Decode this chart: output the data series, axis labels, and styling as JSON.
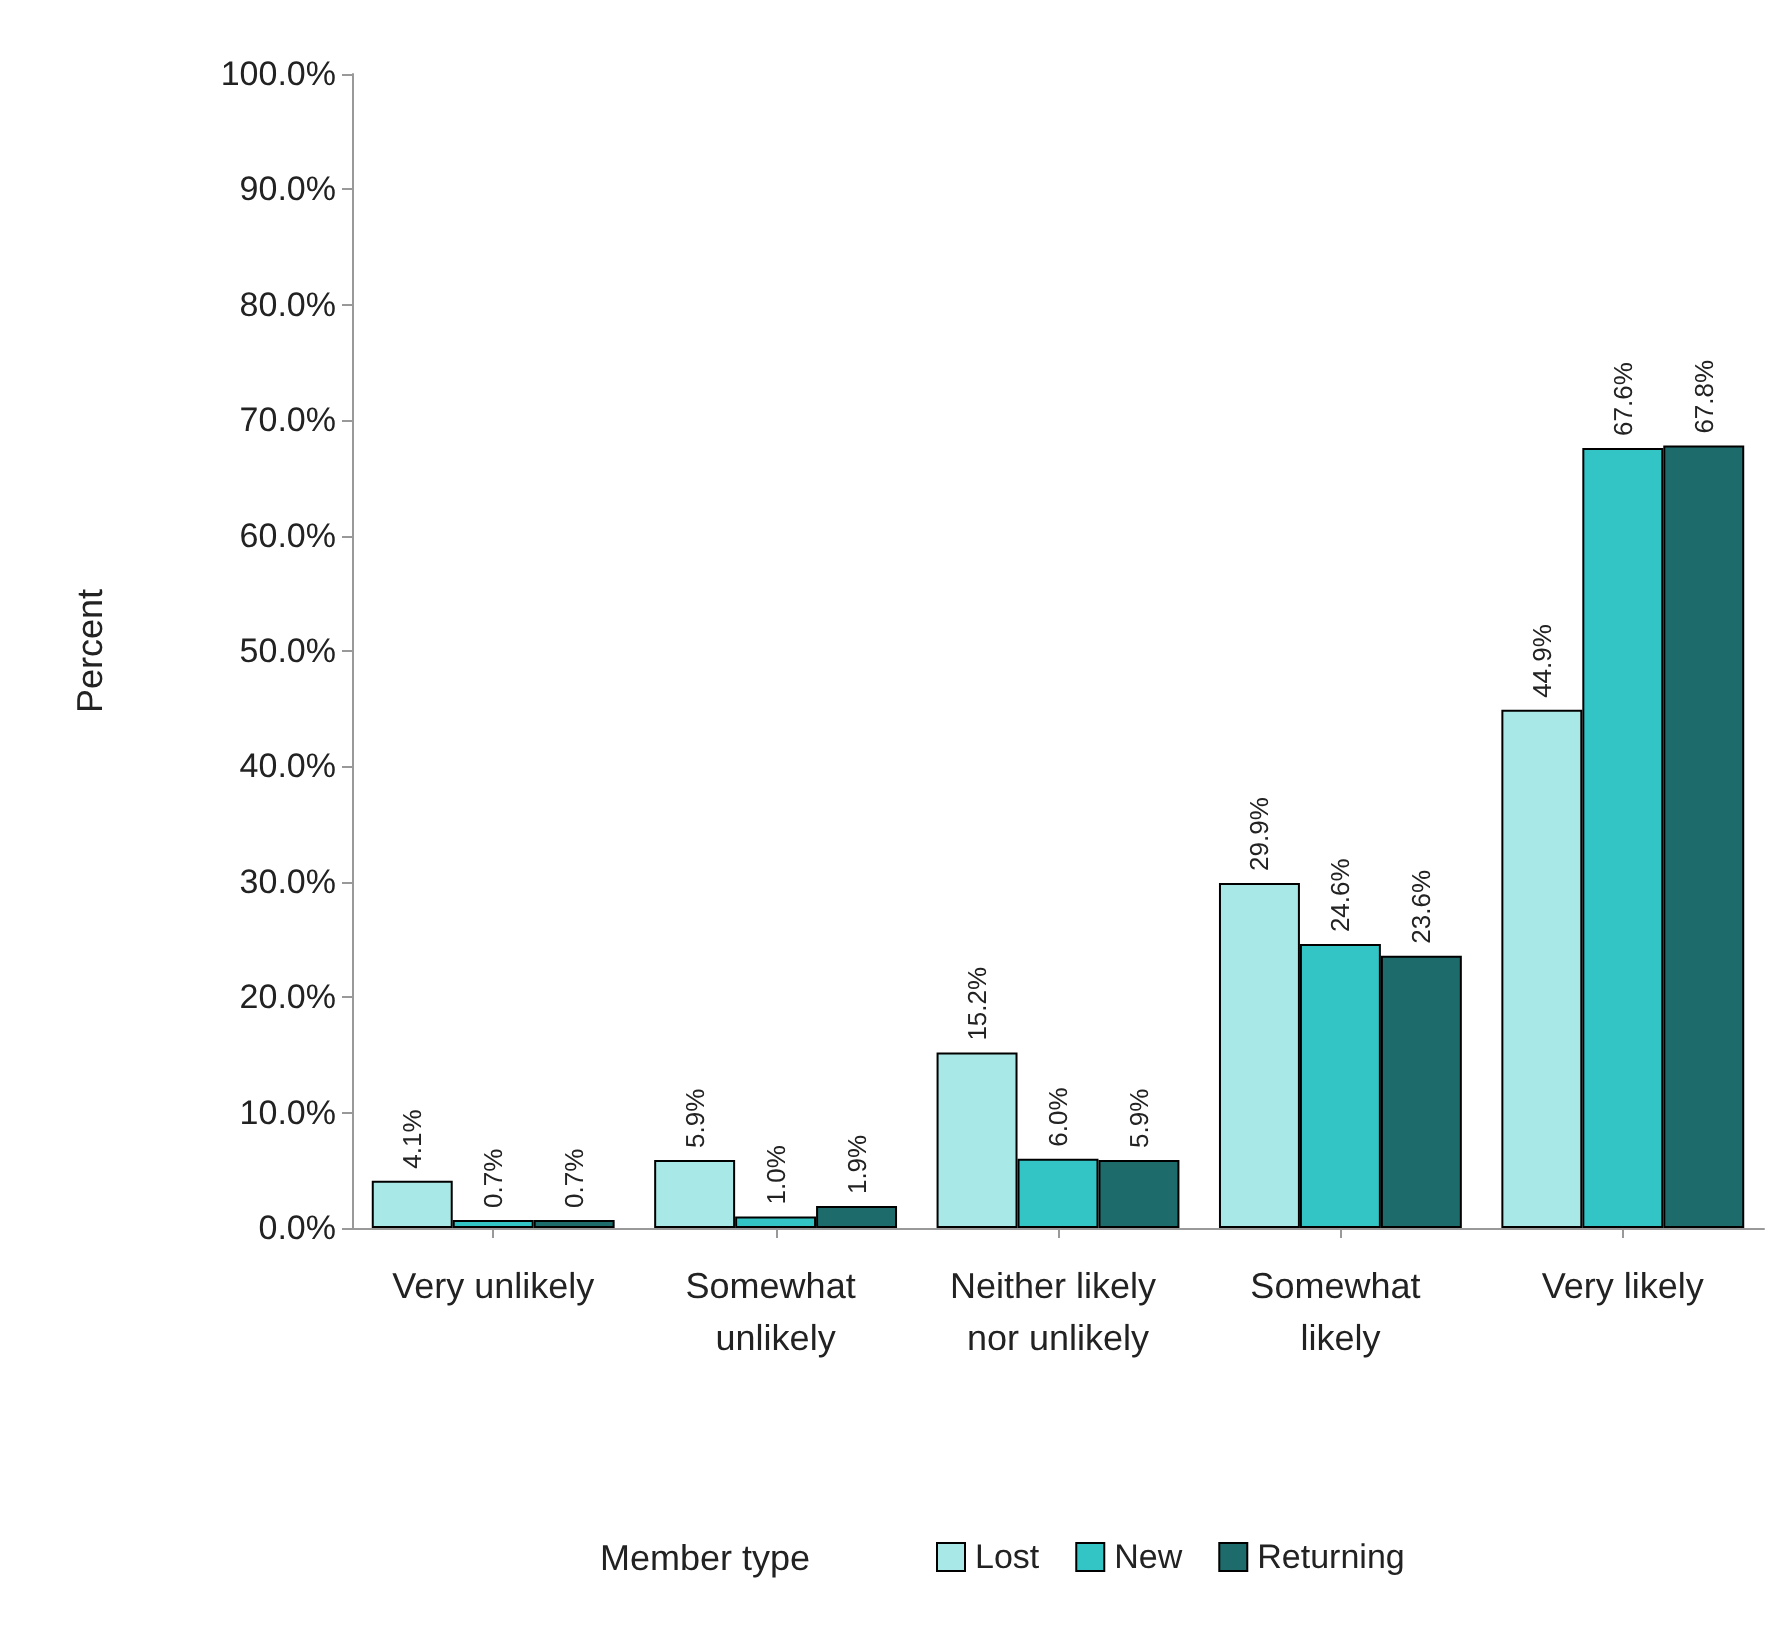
{
  "chart_data": {
    "type": "bar",
    "ylabel": "Percent",
    "legend_title": "Member type",
    "categories": [
      "Very unlikely",
      "Somewhat unlikely",
      "Neither likely nor unlikely",
      "Somewhat likely",
      "Very likely"
    ],
    "series": [
      {
        "name": "Lost",
        "color": "#a8e8e6",
        "values": [
          4.1,
          5.9,
          15.2,
          29.9,
          44.9
        ],
        "value_labels": [
          "4.1%",
          "5.9%",
          "15.2%",
          "29.9%",
          "44.9%"
        ]
      },
      {
        "name": "New",
        "color": "#33c5c5",
        "values": [
          0.7,
          1.0,
          6.0,
          24.6,
          67.6
        ],
        "value_labels": [
          "0.7%",
          "1.0%",
          "6.0%",
          "24.6%",
          "67.6%"
        ]
      },
      {
        "name": "Returning",
        "color": "#1e6b6b",
        "values": [
          0.7,
          1.9,
          5.9,
          23.6,
          67.8
        ],
        "value_labels": [
          "0.7%",
          "1.9%",
          "5.9%",
          "23.6%",
          "67.8%"
        ]
      }
    ],
    "ylim": [
      0,
      100
    ],
    "yticks": [
      {
        "value": 0,
        "label": "0.0%"
      },
      {
        "value": 10,
        "label": "10.0%"
      },
      {
        "value": 20,
        "label": "20.0%"
      },
      {
        "value": 30,
        "label": "30.0%"
      },
      {
        "value": 40,
        "label": "40.0%"
      },
      {
        "value": 50,
        "label": "50.0%"
      },
      {
        "value": 60,
        "label": "60.0%"
      },
      {
        "value": 70,
        "label": "70.0%"
      },
      {
        "value": 80,
        "label": "80.0%"
      },
      {
        "value": 90,
        "label": "90.0%"
      },
      {
        "value": 100,
        "label": "100.0%"
      }
    ],
    "grid": false,
    "legend": "bottom"
  }
}
